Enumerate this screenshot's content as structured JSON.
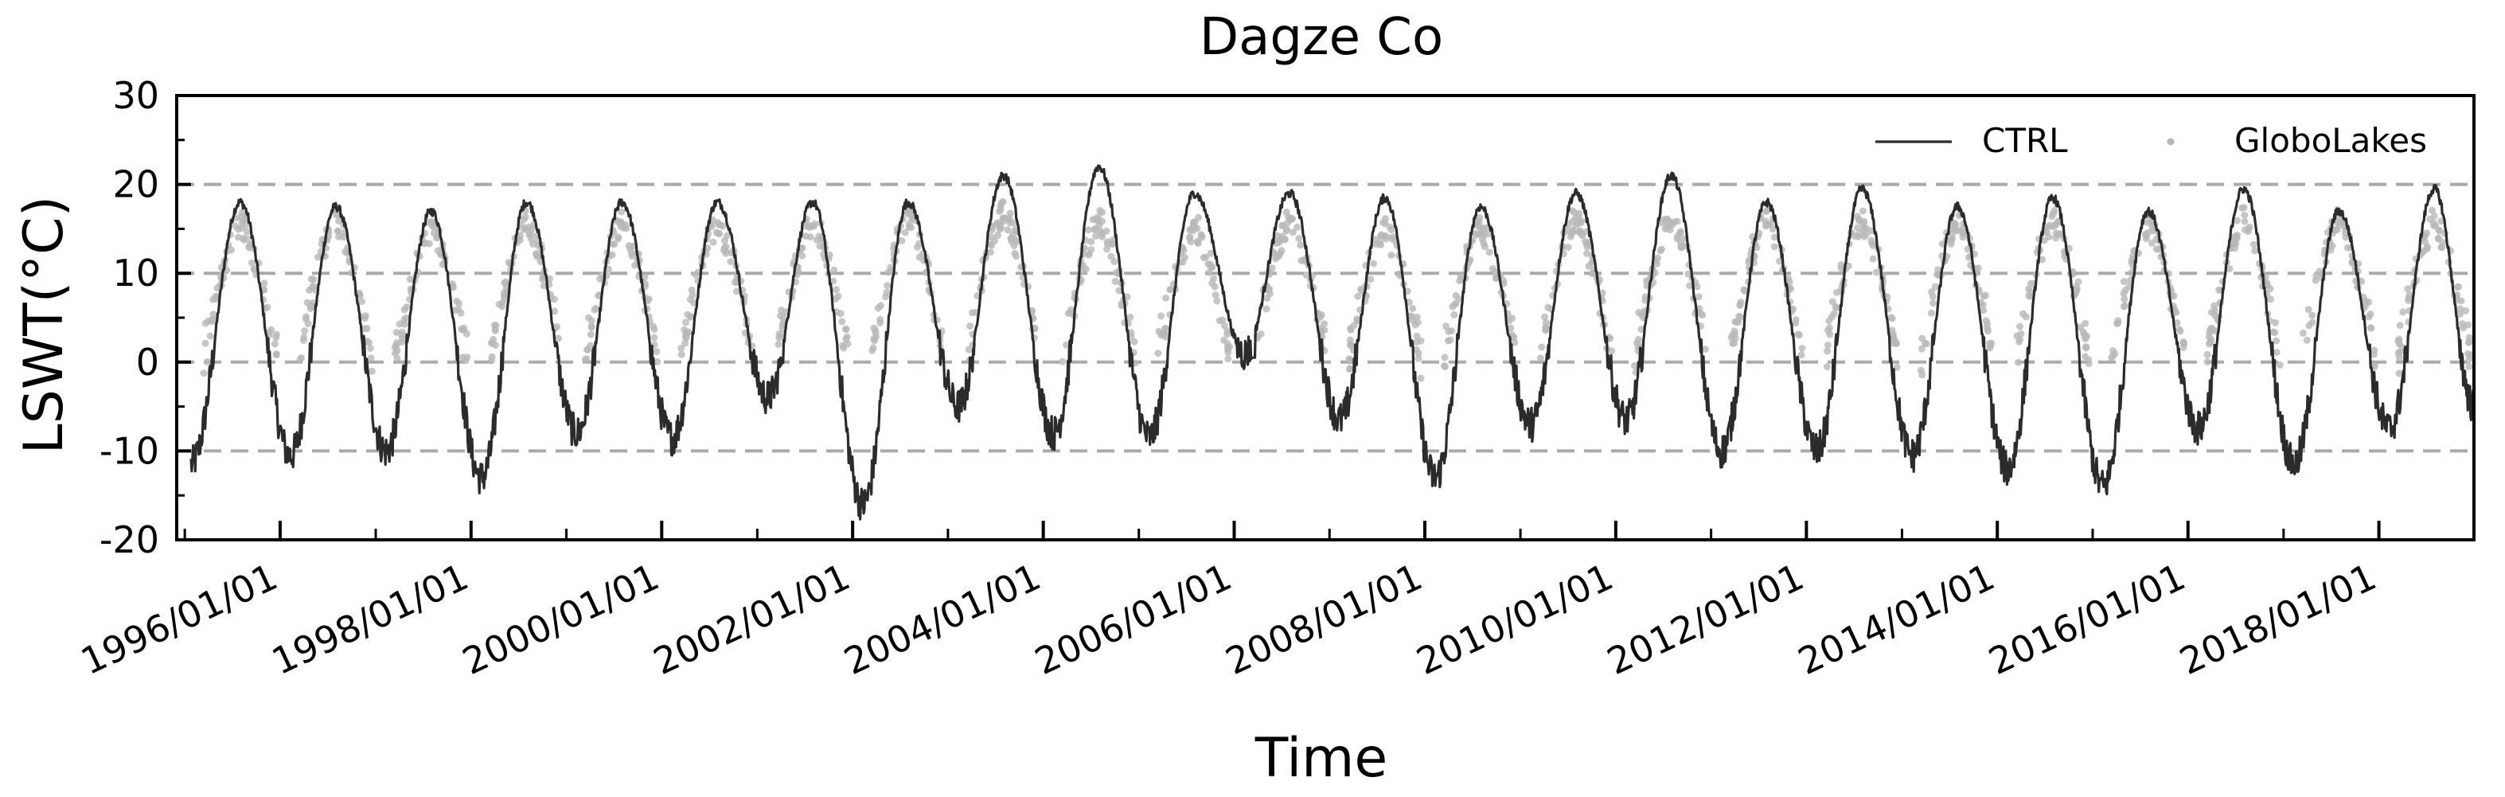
{
  "chart_data": {
    "type": "line",
    "title": "Dagze Co",
    "xlabel": "Time",
    "ylabel": "LSWT(°C)",
    "ylim": [
      -20,
      30
    ],
    "xlim": [
      "1994/12/01",
      "2018/12/31"
    ],
    "yticks": [
      30,
      20,
      10,
      0,
      -10,
      -20
    ],
    "yticks_minor": [
      25,
      15,
      5,
      -5,
      -15
    ],
    "xticks": [
      "1996/01/01",
      "1998/01/01",
      "2000/01/01",
      "2002/01/01",
      "2004/01/01",
      "2006/01/01",
      "2008/01/01",
      "2010/01/01",
      "2012/01/01",
      "2014/01/01",
      "2016/01/01",
      "2018/01/01"
    ],
    "xticks_minor": [
      "1995/01/01",
      "1997/01/01",
      "1999/01/01",
      "2001/01/01",
      "2003/01/01",
      "2005/01/01",
      "2007/01/01",
      "2009/01/01",
      "2011/01/01",
      "2013/01/01",
      "2015/01/01",
      "2017/01/01"
    ],
    "gridlines_y": [
      20,
      10,
      0,
      -10
    ],
    "grid": "dashed horizontal at 20, 10, 0, -10",
    "legend_position": "top-right",
    "series": [
      {
        "name": "CTRL",
        "style": "line",
        "color": "#2b2b2b",
        "annual_peaks": [
          {
            "date": "1995/08/01",
            "value": 18
          },
          {
            "date": "1996/08/01",
            "value": 17.5
          },
          {
            "date": "1997/08/01",
            "value": 17
          },
          {
            "date": "1998/08/01",
            "value": 18
          },
          {
            "date": "1999/08/01",
            "value": 18
          },
          {
            "date": "2000/08/01",
            "value": 18
          },
          {
            "date": "2001/08/01",
            "value": 18
          },
          {
            "date": "2002/08/01",
            "value": 18
          },
          {
            "date": "2003/08/01",
            "value": 21
          },
          {
            "date": "2004/08/01",
            "value": 22
          },
          {
            "date": "2005/08/01",
            "value": 19
          },
          {
            "date": "2006/08/01",
            "value": 19
          },
          {
            "date": "2007/08/01",
            "value": 18.5
          },
          {
            "date": "2008/08/01",
            "value": 17.5
          },
          {
            "date": "2009/08/01",
            "value": 19
          },
          {
            "date": "2010/08/01",
            "value": 21
          },
          {
            "date": "2011/08/01",
            "value": 18
          },
          {
            "date": "2012/08/01",
            "value": 19.5
          },
          {
            "date": "2013/08/01",
            "value": 17.5
          },
          {
            "date": "2014/08/01",
            "value": 18.5
          },
          {
            "date": "2015/08/01",
            "value": 17
          },
          {
            "date": "2016/08/01",
            "value": 19.5
          },
          {
            "date": "2017/08/01",
            "value": 17
          },
          {
            "date": "2018/08/01",
            "value": 19.5
          }
        ],
        "annual_minima": [
          {
            "date": "1995/01/25",
            "value": -11.5
          },
          {
            "date": "1996/02/10",
            "value": -10.5
          },
          {
            "date": "1997/02/10",
            "value": -10
          },
          {
            "date": "1998/02/10",
            "value": -13
          },
          {
            "date": "1999/02/10",
            "value": -8
          },
          {
            "date": "2000/02/10",
            "value": -8.5
          },
          {
            "date": "2001/02/10",
            "value": -4
          },
          {
            "date": "2002/02/10",
            "value": -16
          },
          {
            "date": "2003/02/10",
            "value": -5
          },
          {
            "date": "2004/02/10",
            "value": -8
          },
          {
            "date": "2005/02/10",
            "value": -8.5
          },
          {
            "date": "2006/02/10",
            "value": 1
          },
          {
            "date": "2007/02/10",
            "value": -6.5
          },
          {
            "date": "2008/02/10",
            "value": -13
          },
          {
            "date": "2009/02/10",
            "value": -7
          },
          {
            "date": "2010/02/10",
            "value": -6.5
          },
          {
            "date": "2011/02/10",
            "value": -10
          },
          {
            "date": "2012/02/10",
            "value": -10
          },
          {
            "date": "2013/02/10",
            "value": -10.5
          },
          {
            "date": "2014/02/10",
            "value": -12
          },
          {
            "date": "2015/02/10",
            "value": -14
          },
          {
            "date": "2016/02/10",
            "value": -7.5
          },
          {
            "date": "2017/02/10",
            "value": -11.5
          },
          {
            "date": "2018/02/10",
            "value": -7.5
          }
        ],
        "last_value": {
          "date": "2018/12/31",
          "value": -5
        }
      },
      {
        "name": "GloboLakes",
        "style": "scatter",
        "color": "#b8b8b8",
        "annual_peaks": [
          {
            "date": "1995/08/01",
            "value": 15.5
          },
          {
            "date": "1996/08/01",
            "value": 16
          },
          {
            "date": "1997/08/01",
            "value": 15
          },
          {
            "date": "1998/08/01",
            "value": 15.5
          },
          {
            "date": "1999/08/01",
            "value": 16
          },
          {
            "date": "2000/08/01",
            "value": 15.5
          },
          {
            "date": "2001/08/01",
            "value": 16
          },
          {
            "date": "2002/08/01",
            "value": 16.5
          },
          {
            "date": "2003/08/01",
            "value": 17
          },
          {
            "date": "2004/08/01",
            "value": 16
          },
          {
            "date": "2005/08/01",
            "value": 15.5
          },
          {
            "date": "2006/08/01",
            "value": 16
          },
          {
            "date": "2007/08/01",
            "value": 15
          },
          {
            "date": "2008/08/01",
            "value": 15
          },
          {
            "date": "2009/08/01",
            "value": 16
          },
          {
            "date": "2010/08/01",
            "value": 16.5
          },
          {
            "date": "2011/08/01",
            "value": 16.5
          },
          {
            "date": "2012/08/01",
            "value": 16
          },
          {
            "date": "2013/08/01",
            "value": 16
          },
          {
            "date": "2014/08/01",
            "value": 16
          },
          {
            "date": "2015/08/01",
            "value": 15.5
          },
          {
            "date": "2016/08/01",
            "value": 16
          },
          {
            "date": "2017/08/01",
            "value": 16
          },
          {
            "date": "2018/08/01",
            "value": 16
          }
        ],
        "low_range": [
          -1,
          2
        ]
      }
    ]
  }
}
